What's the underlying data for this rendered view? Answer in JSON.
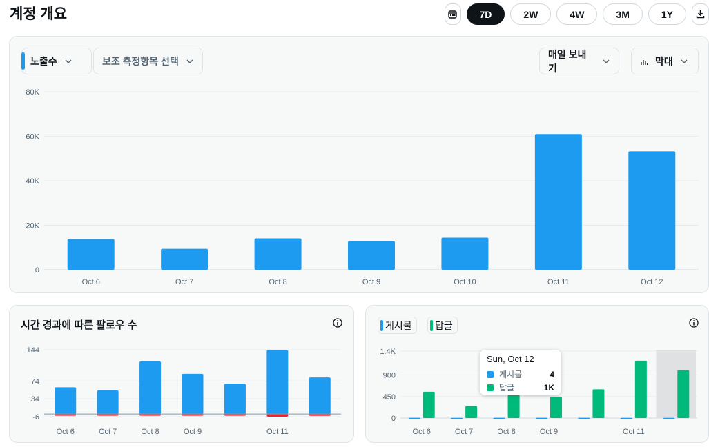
{
  "header": {
    "title": "계정 개요"
  },
  "range": {
    "options": [
      "7D",
      "2W",
      "4W",
      "3M",
      "1Y"
    ],
    "selected": "7D",
    "calendar_icon": "calendar-icon",
    "download_icon": "download-icon"
  },
  "main_chart": {
    "metric_label": "노출수",
    "secondary_label": "보조 측정항목 선택",
    "frequency_label": "매일 보내기",
    "chart_type_label": "막대",
    "bar_icon": "bar-chart-icon",
    "chevron_icon": "chevron-down-icon",
    "accent_color": "#1d9bf0"
  },
  "follower_card": {
    "title": "시간 경과에 따른 팔로우 수",
    "info_icon": "info-icon"
  },
  "posts_card": {
    "legend": [
      {
        "label": "게시물",
        "color": "#1d9bf0"
      },
      {
        "label": "답글",
        "color": "#00ba7c"
      }
    ],
    "info_icon": "info-icon"
  },
  "tooltip": {
    "title": "Sun, Oct 12",
    "rows": [
      {
        "label": "게시물",
        "value": "4",
        "color": "#1d9bf0"
      },
      {
        "label": "답글",
        "value": "1K",
        "color": "#00ba7c"
      }
    ]
  },
  "chart_data": [
    {
      "type": "bar",
      "categories": [
        "Oct 6",
        "Oct 7",
        "Oct 8",
        "Oct 9",
        "Oct 10",
        "Oct 11",
        "Oct 12"
      ],
      "series": [
        {
          "name": "노출수",
          "values": [
            13800,
            9400,
            14100,
            12800,
            14400,
            61000,
            53200
          ],
          "color": "#1d9bf0"
        }
      ],
      "yticks": [
        0,
        20000,
        40000,
        60000,
        80000
      ],
      "ytick_labels": [
        "0",
        "20K",
        "40K",
        "60K",
        "80K"
      ],
      "ylim": [
        0,
        80000
      ],
      "grid": true
    },
    {
      "type": "bar",
      "categories": [
        "Oct 6",
        "Oct 7",
        "Oct 8",
        "Oct 9",
        "Oct 10",
        "Oct 11",
        "Oct 12"
      ],
      "xtick_labels": [
        "Oct 6",
        "Oct 7",
        "Oct 8",
        "Oct 9",
        "",
        "Oct 11",
        ""
      ],
      "series": [
        {
          "values": [
            60,
            53,
            118,
            90,
            68,
            143,
            82
          ],
          "color": "#1d9bf0"
        },
        {
          "values": [
            -1,
            -1,
            -2,
            -3,
            -2,
            -6,
            -4
          ],
          "color": "#f4212e"
        }
      ],
      "yticks": [
        -6,
        34,
        74,
        144
      ],
      "ylim": [
        -6,
        144
      ],
      "grid": true
    },
    {
      "type": "bar",
      "categories": [
        "Oct 6",
        "Oct 7",
        "Oct 8",
        "Oct 9",
        "Oct 10",
        "Oct 11",
        "Oct 12"
      ],
      "xtick_labels": [
        "Oct 6",
        "Oct 7",
        "Oct 8",
        "Oct 9",
        "",
        "Oct 11",
        ""
      ],
      "series": [
        {
          "name": "게시물",
          "values": [
            5,
            4,
            6,
            5,
            5,
            3,
            4
          ],
          "color": "#1d9bf0"
        },
        {
          "name": "답글",
          "values": [
            550,
            250,
            600,
            440,
            600,
            1200,
            1000
          ],
          "color": "#00ba7c"
        }
      ],
      "yticks": [
        0,
        450,
        900,
        1400
      ],
      "ytick_labels": [
        "0",
        "450",
        "900",
        "1.4K"
      ],
      "ylim": [
        0,
        1400
      ],
      "highlighted_category": "Oct 12",
      "grid": true
    }
  ]
}
